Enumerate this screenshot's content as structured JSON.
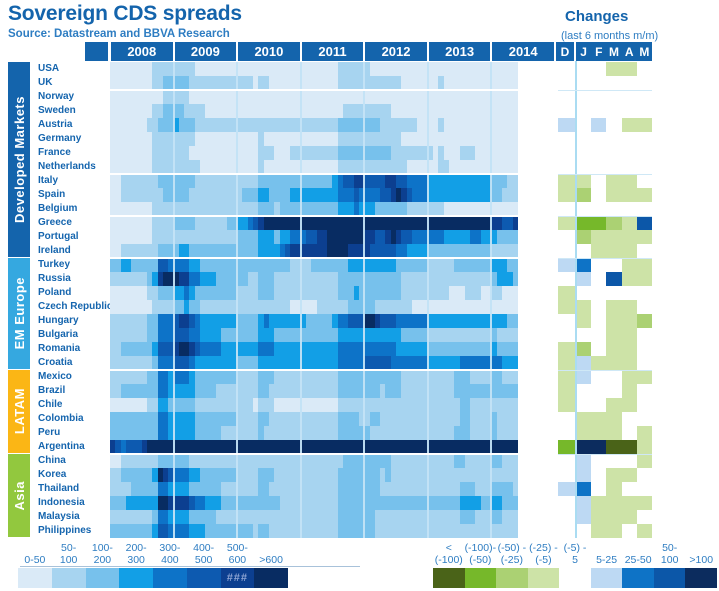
{
  "header": {
    "title": "Sovereign CDS spreads",
    "source": "Source: Datastream and BBVA Research",
    "changes_title": "Changes",
    "changes_subtitle": "(last 6 months m/m)"
  },
  "chart_data": {
    "type": "heatmap",
    "title": "Sovereign CDS spreads",
    "x_years": [
      "2008",
      "2009",
      "2010",
      "2011",
      "2012",
      "2013",
      "2014"
    ],
    "months_per_year": [
      12,
      12,
      12,
      12,
      12,
      12,
      5
    ],
    "changes_months": [
      "D",
      "J",
      "F",
      "M",
      "A",
      "M"
    ],
    "spread_buckets": [
      "0-50",
      "50-100",
      "100-200",
      "200-300",
      "300-400",
      "400-500",
      "500-600",
      ">600"
    ],
    "spread_palette": [
      "#daeaf7",
      "#a7d4f0",
      "#77c1ec",
      "#129fe6",
      "#0d73c8",
      "#0d5ab0",
      "#0c3f90",
      "#082c62"
    ],
    "changes_palette": {
      "a": "#cde3a7",
      "b": "#abd173",
      "c": "#76b82a",
      "d": "#4a6318",
      "1": "#bdd9f3",
      "2": "#0e73c6",
      "3": "#0c57a8",
      "4": "#0c2c5e"
    },
    "changes_codes_legend": {
      "a": "(-25)-(-5)",
      "b": "(-50)-(-25)",
      "c": "(-100)-(-50)",
      "d": "<(-100)",
      "1": "5-25",
      "2": "25-50",
      "3": "50-100",
      "4": ">100",
      ".": "(-5)-5"
    },
    "separators_after_rows": [
      2,
      8,
      11,
      14,
      22,
      28
    ],
    "groups": [
      {
        "label": "Developed Markets",
        "color": "#1464ac",
        "countries": [
          {
            "name": "USA",
            "spreads": [
              "000000001111",
              "111100000000",
              "000000000000",
              "000000011111",
              "100000000000",
              "000000000000",
              "00000"
            ],
            "changes": "...aa."
          },
          {
            "name": "UK",
            "spreads": [
              "000000001122",
              "222111111111",
              "111011000000",
              "000000011111",
              "111111100000",
              "001000000000",
              "00000"
            ],
            "changes": "......"
          },
          {
            "name": "Norway",
            "spreads": [
              "000000000011",
              "111000000000",
              "000000000000",
              "000000000000",
              "000000000000",
              "000000000000",
              "00000"
            ],
            "changes": "......"
          },
          {
            "name": "Sweden",
            "spreads": [
              "000000001122",
              "221111000000",
              "000000000000",
              "000000001111",
              "111110000000",
              "000000000000",
              "00000"
            ],
            "changes": "......"
          },
          {
            "name": "Austria",
            "spreads": [
              "000000011222",
              "322211111111",
              "111111111111",
              "111111122222",
              "222111111100",
              "001000000000",
              "00000"
            ],
            "changes": "1.1.aa"
          },
          {
            "name": "Germany",
            "spreads": [
              "000000001111",
              "111100000000",
              "000010000000",
              "000000011111",
              "111111100000",
              "000000000000",
              "00000"
            ],
            "changes": "......"
          },
          {
            "name": "France",
            "spreads": [
              "000000001111",
              "111000000000",
              "000011100011",
              "111111122222",
              "222221111111",
              "101000111000",
              "00000"
            ],
            "changes": "......"
          },
          {
            "name": "Netherlands",
            "spreads": [
              "000000001111",
              "111110000000",
              "000010000000",
              "000000011111",
              "111111110000",
              "001100000000",
              "00000"
            ],
            "changes": "......"
          },
          {
            "name": "Italy",
            "spreads": [
              "001111111222",
              "222211111111",
              "111122222222",
              "222222345566",
              "555566554444",
              "333333333333",
              "22211"
            ],
            "changes": "aa.aa."
          },
          {
            "name": "Spain",
            "spreads": [
              "001111111122",
              "222111111111",
              "122233222233",
              "333333344454",
              "444556765444",
              "333333333333",
              "22111"
            ],
            "changes": "ab.aaa"
          },
          {
            "name": "Belgium",
            "spreads": [
              "000000001111",
              "111111111111",
              "111122212222",
              "222222233343",
              "332222221111",
              "111000000000",
              "00000"
            ],
            "changes": "......"
          },
          {
            "name": "Greece",
            "spreads": [
              "000000001111",
              "222211111122",
              "334567777777",
              "777777777777",
              "777777777777",
              "777777777777",
              "66556"
            ],
            "changes": "accba3"
          },
          {
            "name": "Portugal",
            "spreads": [
              "000000001111",
              "111111111111",
              "222233323344",
              "455667777777",
              "665567655444",
              "444333334433",
              "32222"
            ],
            "changes": ".baaaa"
          },
          {
            "name": "Ireland",
            "spreads": [
              "001111111222",
              "233222222222",
              "222233334566",
              "666667777666",
              "655555443333",
              "222222222222",
              "11111"
            ],
            "changes": "..aaa."
          }
        ]
      },
      {
        "label": "EM Europe",
        "color": "#35a8e0",
        "countries": [
          {
            "name": "Turkey",
            "spreads": [
              "223322222554",
              "444332222222",
              "222222222211",
              "112222222333",
              "333333222222",
              "111112222222",
              "33322"
            ],
            "changes": "12..aa"
          },
          {
            "name": "Russia",
            "spreads": [
              "111111123677",
              "766443332222",
              "221122211111",
              "111111122222",
              "222222211111",
              "111111111111",
              "23332"
            ],
            "changes": ".1.3aa"
          },
          {
            "name": "Poland",
            "spreads": [
              "000000011222",
              "334322222222",
              "111122211111",
              "111111122232",
              "222222211111",
              "111100011100",
              "11000"
            ],
            "changes": "a....."
          },
          {
            "name": "Czech Republic",
            "spreads": [
              "000000001111",
              "223221111111",
              "111111111100",
              "000111111222",
              "221111111000",
              "000000000000",
              "00000"
            ],
            "changes": "aa.aa."
          },
          {
            "name": "Hungary",
            "spreads": [
              "111111122444",
              "566543333333",
              "222234333333",
              "322222344555",
              "776555444444",
              "333333333333",
              "33322"
            ],
            "changes": ".a.aab"
          },
          {
            "name": "Bulgaria",
            "spreads": [
              "111111122444",
              "555443333222",
              "222233322222",
              "222222233333",
              "333333322222",
              "111111111111",
              "21111"
            ],
            "changes": "...aa."
          },
          {
            "name": "Romania",
            "spreads": [
              "112222223555",
              "677654444333",
              "333344433333",
              "333333344444",
              "444444333333",
              "222222222222",
              "32222"
            ],
            "changes": "ab.aa."
          },
          {
            "name": "Croatia",
            "spreads": [
              "111111112444",
              "555433333333",
              "222233333333",
              "333333344444",
              "555554444444",
              "333333444444",
              "44333"
            ],
            "changes": "a1aaa."
          }
        ]
      },
      {
        "label": "LATAM",
        "color": "#fbb615",
        "countries": [
          {
            "name": "Mexico",
            "spreads": [
              "111111122443",
              "444322222222",
              "111122211111",
              "111111122222",
              "222222211111",
              "111112221111",
              "22111"
            ],
            "changes": "a1..aa"
          },
          {
            "name": "Brazil",
            "spreads": [
              "112222222443",
              "333322221111",
              "111122111111",
              "111111122222",
              "222122211111",
              "111112222222",
              "22222"
            ],
            "changes": "a...a."
          },
          {
            "name": "Chile",
            "spreads": [
              "000000011332",
              "222211111111",
              "111011100000",
              "000000011111",
              "111111111111",
              "111111221111",
              "11111"
            ],
            "changes": "a..aa."
          },
          {
            "name": "Colombia",
            "spreads": [
              "222222222443",
              "333322222222",
              "111122111111",
              "111111122221",
              "122111111111",
              "111111221111",
              "21111"
            ],
            "changes": ".aaa.."
          },
          {
            "name": "Peru",
            "spreads": [
              "222222222443",
              "333322222111",
              "111121111111",
              "111111122222",
              "211111111111",
              "111112221111",
              "21111"
            ],
            "changes": ".aaa.a"
          },
          {
            "name": "Argentina",
            "spreads": [
              "654555677777",
              "777777777777",
              "777777777777",
              "777777777777",
              "777777777777",
              "777777777777",
              "77777"
            ],
            "changes": "c44dda"
          }
        ]
      },
      {
        "label": "Asia",
        "color": "#92c83e",
        "countries": [
          {
            "name": "China",
            "spreads": [
              "001111111222",
              "222111111111",
              "111111111111",
              "111111112222",
              "222221111111",
              "111112211111",
              "22111"
            ],
            "changes": ".1...a"
          },
          {
            "name": "Korea",
            "spreads": [
              "112222223765",
              "444332222222",
              "111122211111",
              "111111122222",
              "222121111111",
              "111111111111",
              "11111"
            ],
            "changes": ".1.aa."
          },
          {
            "name": "Thailand",
            "spreads": [
              "111122222443",
              "333222222111",
              "111122111111",
              "111111122222",
              "222111111111",
              "111111222111",
              "22221"
            ],
            "changes": "12.a.."
          },
          {
            "name": "Indonesia",
            "spreads": [
              "222333333776",
              "666544333222",
              "222222221111",
              "111111122222",
              "222222222222",
              "222222333322",
              "33222"
            ],
            "changes": ".1aaaa"
          },
          {
            "name": "Malaysia",
            "spreads": [
              "111111112443",
              "333222221111",
              "111111111111",
              "111111122222",
              "221111111111",
              "111111222111",
              "22111"
            ],
            "changes": ".1aaa."
          },
          {
            "name": "Philippines",
            "spreads": [
              "222222223554",
              "444333222222",
              "222122111111",
              "111111122222",
              "221111111111",
              "111111111111",
              "11111"
            ],
            "changes": "..aa.a"
          }
        ]
      }
    ],
    "legend_spreads": {
      "labels": [
        [
          "0-50"
        ],
        [
          "50-",
          "100"
        ],
        [
          "100-",
          "200"
        ],
        [
          "200-",
          "300"
        ],
        [
          "300-",
          "400"
        ],
        [
          "400-",
          "500"
        ],
        [
          "500-",
          "600"
        ],
        [
          ">600"
        ]
      ],
      "colors": [
        "#daeaf7",
        "#a7d4f0",
        "#77c1ec",
        "#129fe6",
        "#0d73c8",
        "#0d5ab0",
        "#0c3f90",
        "#082c62"
      ],
      "overlay": {
        "swatch_index": 6,
        "text": "###"
      }
    },
    "legend_changes": {
      "labels": [
        [
          "<",
          "(-100)"
        ],
        [
          "(-100)-",
          "(-50)"
        ],
        [
          "(-50) -",
          "(-25)"
        ],
        [
          "(-25) -",
          "(-5)"
        ],
        [
          "(-5) -",
          "5"
        ],
        [
          "5-25"
        ],
        [
          "25-50"
        ],
        [
          "50-",
          "100"
        ],
        [
          ">100"
        ]
      ],
      "colors": [
        "#4a6318",
        "#76b82a",
        "#abd173",
        "#cde3a7",
        null,
        "#bdd9f3",
        "#0e73c6",
        "#0c57a8",
        "#0c2c5e"
      ]
    }
  }
}
